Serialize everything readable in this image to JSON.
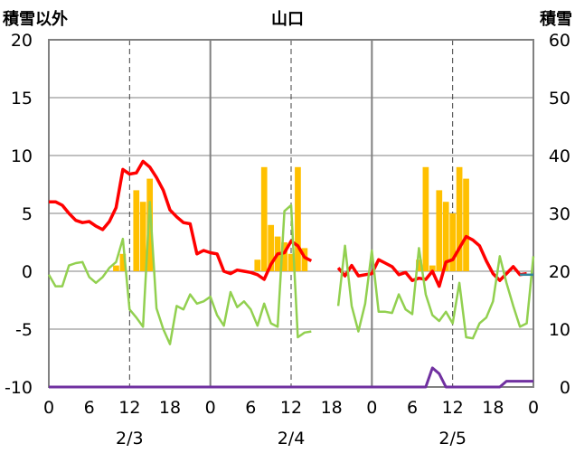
{
  "chart_data": {
    "type": "line",
    "title": "山口",
    "ylabel_left": "積雪以外",
    "ylabel_right": "積雪",
    "ylim_left": [
      -10,
      20
    ],
    "ylim_right": [
      0,
      60
    ],
    "yticks_left": [
      "20",
      "15",
      "10",
      "5",
      "0",
      "-5",
      "-10"
    ],
    "yticks_right": [
      "60",
      "50",
      "40",
      "30",
      "20",
      "10",
      "0"
    ],
    "xlim": [
      0,
      72
    ],
    "xticks": [
      "0",
      "6",
      "12",
      "18",
      "0",
      "6",
      "12",
      "18",
      "0",
      "6",
      "12",
      "18",
      "0"
    ],
    "dates": [
      "2/3",
      "2/4",
      "2/5"
    ],
    "day_boundaries": [
      24,
      48
    ],
    "noon_lines": [
      12,
      36,
      60
    ],
    "colors": {
      "precip": "#FFC000",
      "red": "#FF0000",
      "green": "#92D050",
      "purple": "#7030A0",
      "teal": "#31859C",
      "grid": "#808080"
    },
    "precip_bars": [
      {
        "x": 10,
        "y": 0.5
      },
      {
        "x": 11,
        "y": 1.5
      },
      {
        "x": 13,
        "y": 7
      },
      {
        "x": 14,
        "y": 6
      },
      {
        "x": 15,
        "y": 8
      },
      {
        "x": 31,
        "y": 1
      },
      {
        "x": 32,
        "y": 9
      },
      {
        "x": 33,
        "y": 4
      },
      {
        "x": 34,
        "y": 3
      },
      {
        "x": 35,
        "y": 2.5
      },
      {
        "x": 36,
        "y": 1.5
      },
      {
        "x": 37,
        "y": 9
      },
      {
        "x": 38,
        "y": 2
      },
      {
        "x": 55,
        "y": 1
      },
      {
        "x": 56,
        "y": 9
      },
      {
        "x": 57,
        "y": 0.5
      },
      {
        "x": 58,
        "y": 7
      },
      {
        "x": 59,
        "y": 6
      },
      {
        "x": 60,
        "y": 5
      },
      {
        "x": 61,
        "y": 9
      },
      {
        "x": 62,
        "y": 8
      }
    ],
    "series": [
      {
        "color": "red",
        "axis": "left",
        "segments": [
          [
            [
              0,
              6
            ],
            [
              1,
              6
            ],
            [
              2,
              5.7
            ],
            [
              3,
              5
            ],
            [
              4,
              4.4
            ],
            [
              5,
              4.2
            ],
            [
              6,
              4.3
            ],
            [
              7,
              3.9
            ],
            [
              8,
              3.6
            ],
            [
              9,
              4.3
            ],
            [
              10,
              5.5
            ],
            [
              11,
              8.8
            ],
            [
              12,
              8.4
            ],
            [
              13,
              8.5
            ],
            [
              14,
              9.5
            ],
            [
              15,
              9
            ],
            [
              16,
              8.1
            ],
            [
              17,
              7
            ],
            [
              18,
              5.3
            ],
            [
              19,
              4.7
            ],
            [
              20,
              4.2
            ],
            [
              21,
              4.1
            ],
            [
              22,
              1.5
            ],
            [
              23,
              1.8
            ],
            [
              24,
              1.6
            ],
            [
              25,
              1.5
            ],
            [
              26,
              0
            ],
            [
              27,
              -0.2
            ],
            [
              28,
              0.1
            ],
            [
              29,
              0
            ],
            [
              30,
              -0.1
            ],
            [
              31,
              -0.3
            ],
            [
              32,
              -0.7
            ],
            [
              33,
              0.6
            ],
            [
              34,
              1.5
            ],
            [
              35,
              1.6
            ],
            [
              36,
              2.6
            ],
            [
              37,
              2.2
            ],
            [
              38,
              1.2
            ],
            [
              39,
              0.9
            ]
          ],
          [
            [
              43,
              0.3
            ],
            [
              44,
              -0.4
            ],
            [
              45,
              0.5
            ],
            [
              46,
              -0.4
            ],
            [
              47,
              -0.3
            ],
            [
              48,
              -0.2
            ],
            [
              49,
              1
            ],
            [
              50,
              0.7
            ],
            [
              51,
              0.4
            ],
            [
              52,
              -0.3
            ],
            [
              53,
              -0.1
            ],
            [
              54,
              -0.8
            ],
            [
              55,
              -0.6
            ],
            [
              56,
              -0.7
            ],
            [
              57,
              0
            ],
            [
              58,
              -1.3
            ],
            [
              59,
              0.8
            ],
            [
              60,
              1
            ],
            [
              61,
              2
            ],
            [
              62,
              3
            ],
            [
              63,
              2.7
            ],
            [
              64,
              2.2
            ],
            [
              65,
              0.9
            ],
            [
              66,
              -0.2
            ],
            [
              67,
              -0.8
            ],
            [
              68,
              -0.2
            ],
            [
              69,
              0.4
            ],
            [
              70,
              -0.3
            ],
            [
              71,
              -0.2
            ]
          ]
        ]
      },
      {
        "color": "green",
        "axis": "left",
        "segments": [
          [
            [
              0,
              -0.3
            ],
            [
              1,
              -1.3
            ],
            [
              2,
              -1.3
            ],
            [
              3,
              0.5
            ],
            [
              4,
              0.7
            ],
            [
              5,
              0.8
            ],
            [
              6,
              -0.5
            ],
            [
              7,
              -1
            ],
            [
              8,
              -0.5
            ],
            [
              9,
              0.3
            ],
            [
              10,
              0.8
            ],
            [
              11,
              2.8
            ],
            [
              12,
              -3.3
            ],
            [
              13,
              -4
            ],
            [
              14,
              -4.8
            ],
            [
              15,
              6
            ],
            [
              16,
              -3.2
            ],
            [
              17,
              -5
            ],
            [
              18,
              -6.3
            ],
            [
              19,
              -3
            ],
            [
              20,
              -3.3
            ],
            [
              21,
              -2
            ],
            [
              22,
              -2.8
            ],
            [
              23,
              -2.6
            ],
            [
              24,
              -2.2
            ],
            [
              25,
              -3.8
            ],
            [
              26,
              -4.7
            ],
            [
              27,
              -1.8
            ],
            [
              28,
              -3.1
            ],
            [
              29,
              -2.6
            ],
            [
              30,
              -3.3
            ],
            [
              31,
              -4.7
            ],
            [
              32,
              -2.8
            ],
            [
              33,
              -4.5
            ],
            [
              34,
              -4.8
            ],
            [
              35,
              5.2
            ],
            [
              36,
              5.7
            ],
            [
              37,
              -5.7
            ],
            [
              38,
              -5.3
            ],
            [
              39,
              -5.2
            ]
          ],
          [
            [
              43,
              -3
            ],
            [
              44,
              2.2
            ],
            [
              45,
              -3
            ],
            [
              46,
              -5.2
            ],
            [
              47,
              -2.8
            ],
            [
              48,
              1.8
            ],
            [
              49,
              -3.5
            ],
            [
              50,
              -3.5
            ],
            [
              51,
              -3.6
            ],
            [
              52,
              -2
            ],
            [
              53,
              -3.3
            ],
            [
              54,
              -3.7
            ],
            [
              55,
              2
            ],
            [
              56,
              -2
            ],
            [
              57,
              -3.8
            ],
            [
              58,
              -4.3
            ],
            [
              59,
              -3.5
            ],
            [
              60,
              -4.5
            ],
            [
              61,
              -1
            ],
            [
              62,
              -5.7
            ],
            [
              63,
              -5.8
            ],
            [
              64,
              -4.5
            ],
            [
              65,
              -4
            ],
            [
              66,
              -2.6
            ],
            [
              67,
              1.3
            ],
            [
              68,
              -1
            ],
            [
              69,
              -3
            ],
            [
              70,
              -4.8
            ],
            [
              71,
              -4.5
            ],
            [
              72,
              1.3
            ]
          ]
        ]
      },
      {
        "color": "purple",
        "axis": "right",
        "segments": [
          [
            [
              0,
              0
            ],
            [
              56,
              0
            ],
            [
              57,
              3.3
            ],
            [
              58,
              2.3
            ],
            [
              59,
              0
            ],
            [
              66,
              0
            ],
            [
              67,
              0
            ],
            [
              68,
              1
            ],
            [
              72,
              1
            ]
          ]
        ]
      },
      {
        "color": "teal",
        "axis": "left",
        "segments": [
          [
            [
              70,
              -0.3
            ],
            [
              72,
              -0.3
            ]
          ]
        ]
      }
    ]
  }
}
